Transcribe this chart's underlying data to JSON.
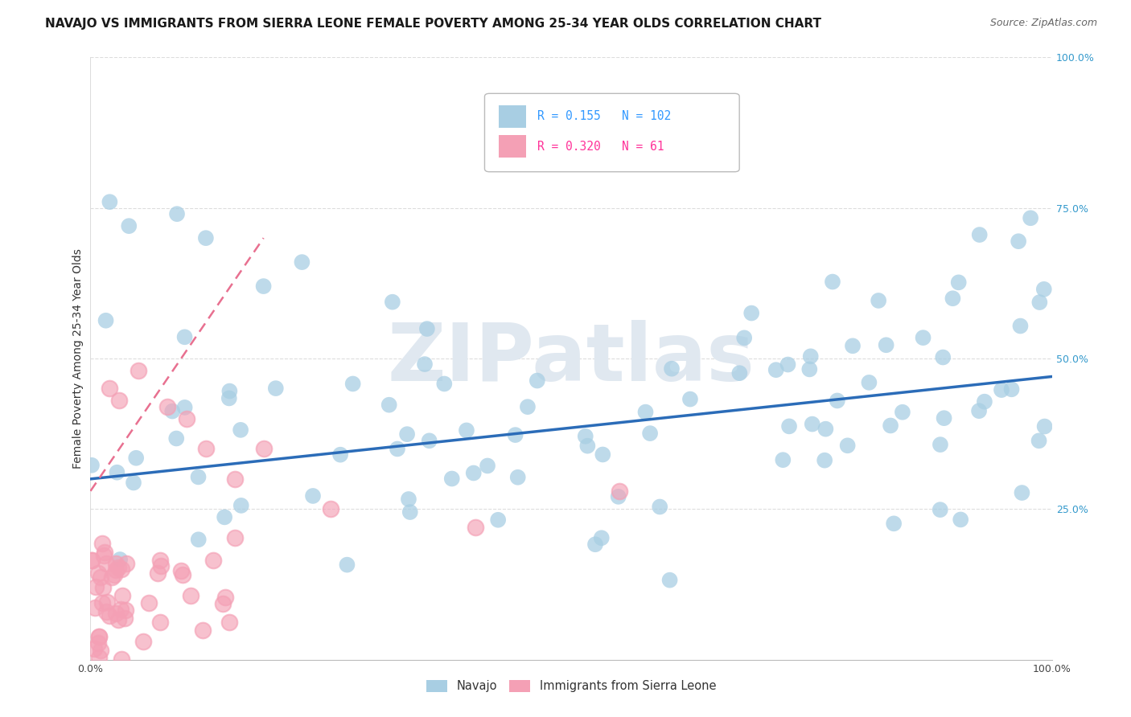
{
  "title": "NAVAJO VS IMMIGRANTS FROM SIERRA LEONE FEMALE POVERTY AMONG 25-34 YEAR OLDS CORRELATION CHART",
  "source": "Source: ZipAtlas.com",
  "ylabel": "Female Poverty Among 25-34 Year Olds",
  "navajo_R": 0.155,
  "navajo_N": 102,
  "sierra_leone_R": 0.32,
  "sierra_leone_N": 61,
  "navajo_color": "#A8CEE3",
  "sierra_leone_color": "#F4A0B5",
  "trend_navajo_color": "#2B6CB8",
  "trend_sierra_leone_color": "#E87090",
  "background_color": "#FFFFFF",
  "grid_color": "#DDDDDD",
  "watermark_color": "#E0E8F0",
  "legend_text_navajo": "#3399FF",
  "legend_text_sierra": "#FF3399"
}
